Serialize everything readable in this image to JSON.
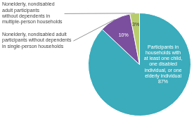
{
  "chart_data": {
    "type": "pie",
    "values": [
      87,
      10,
      3
    ],
    "value_labels": [
      "Participants in\nhouseholds with\nat least one child,\none disabled\nindividual, or one\nelderly individual\n87%",
      "10%",
      "3%"
    ],
    "colors": [
      "#3aacbc",
      "#7b4f9e",
      "#b8cc6e"
    ],
    "data_labels": true,
    "annotations": [
      "Nonelderly, nondisabled adult\nparticipants without dependents\nin single-person households",
      "Nonelderly, nondisabled\nadult participants\nwithout dependents in\nmultiple-person households"
    ]
  }
}
